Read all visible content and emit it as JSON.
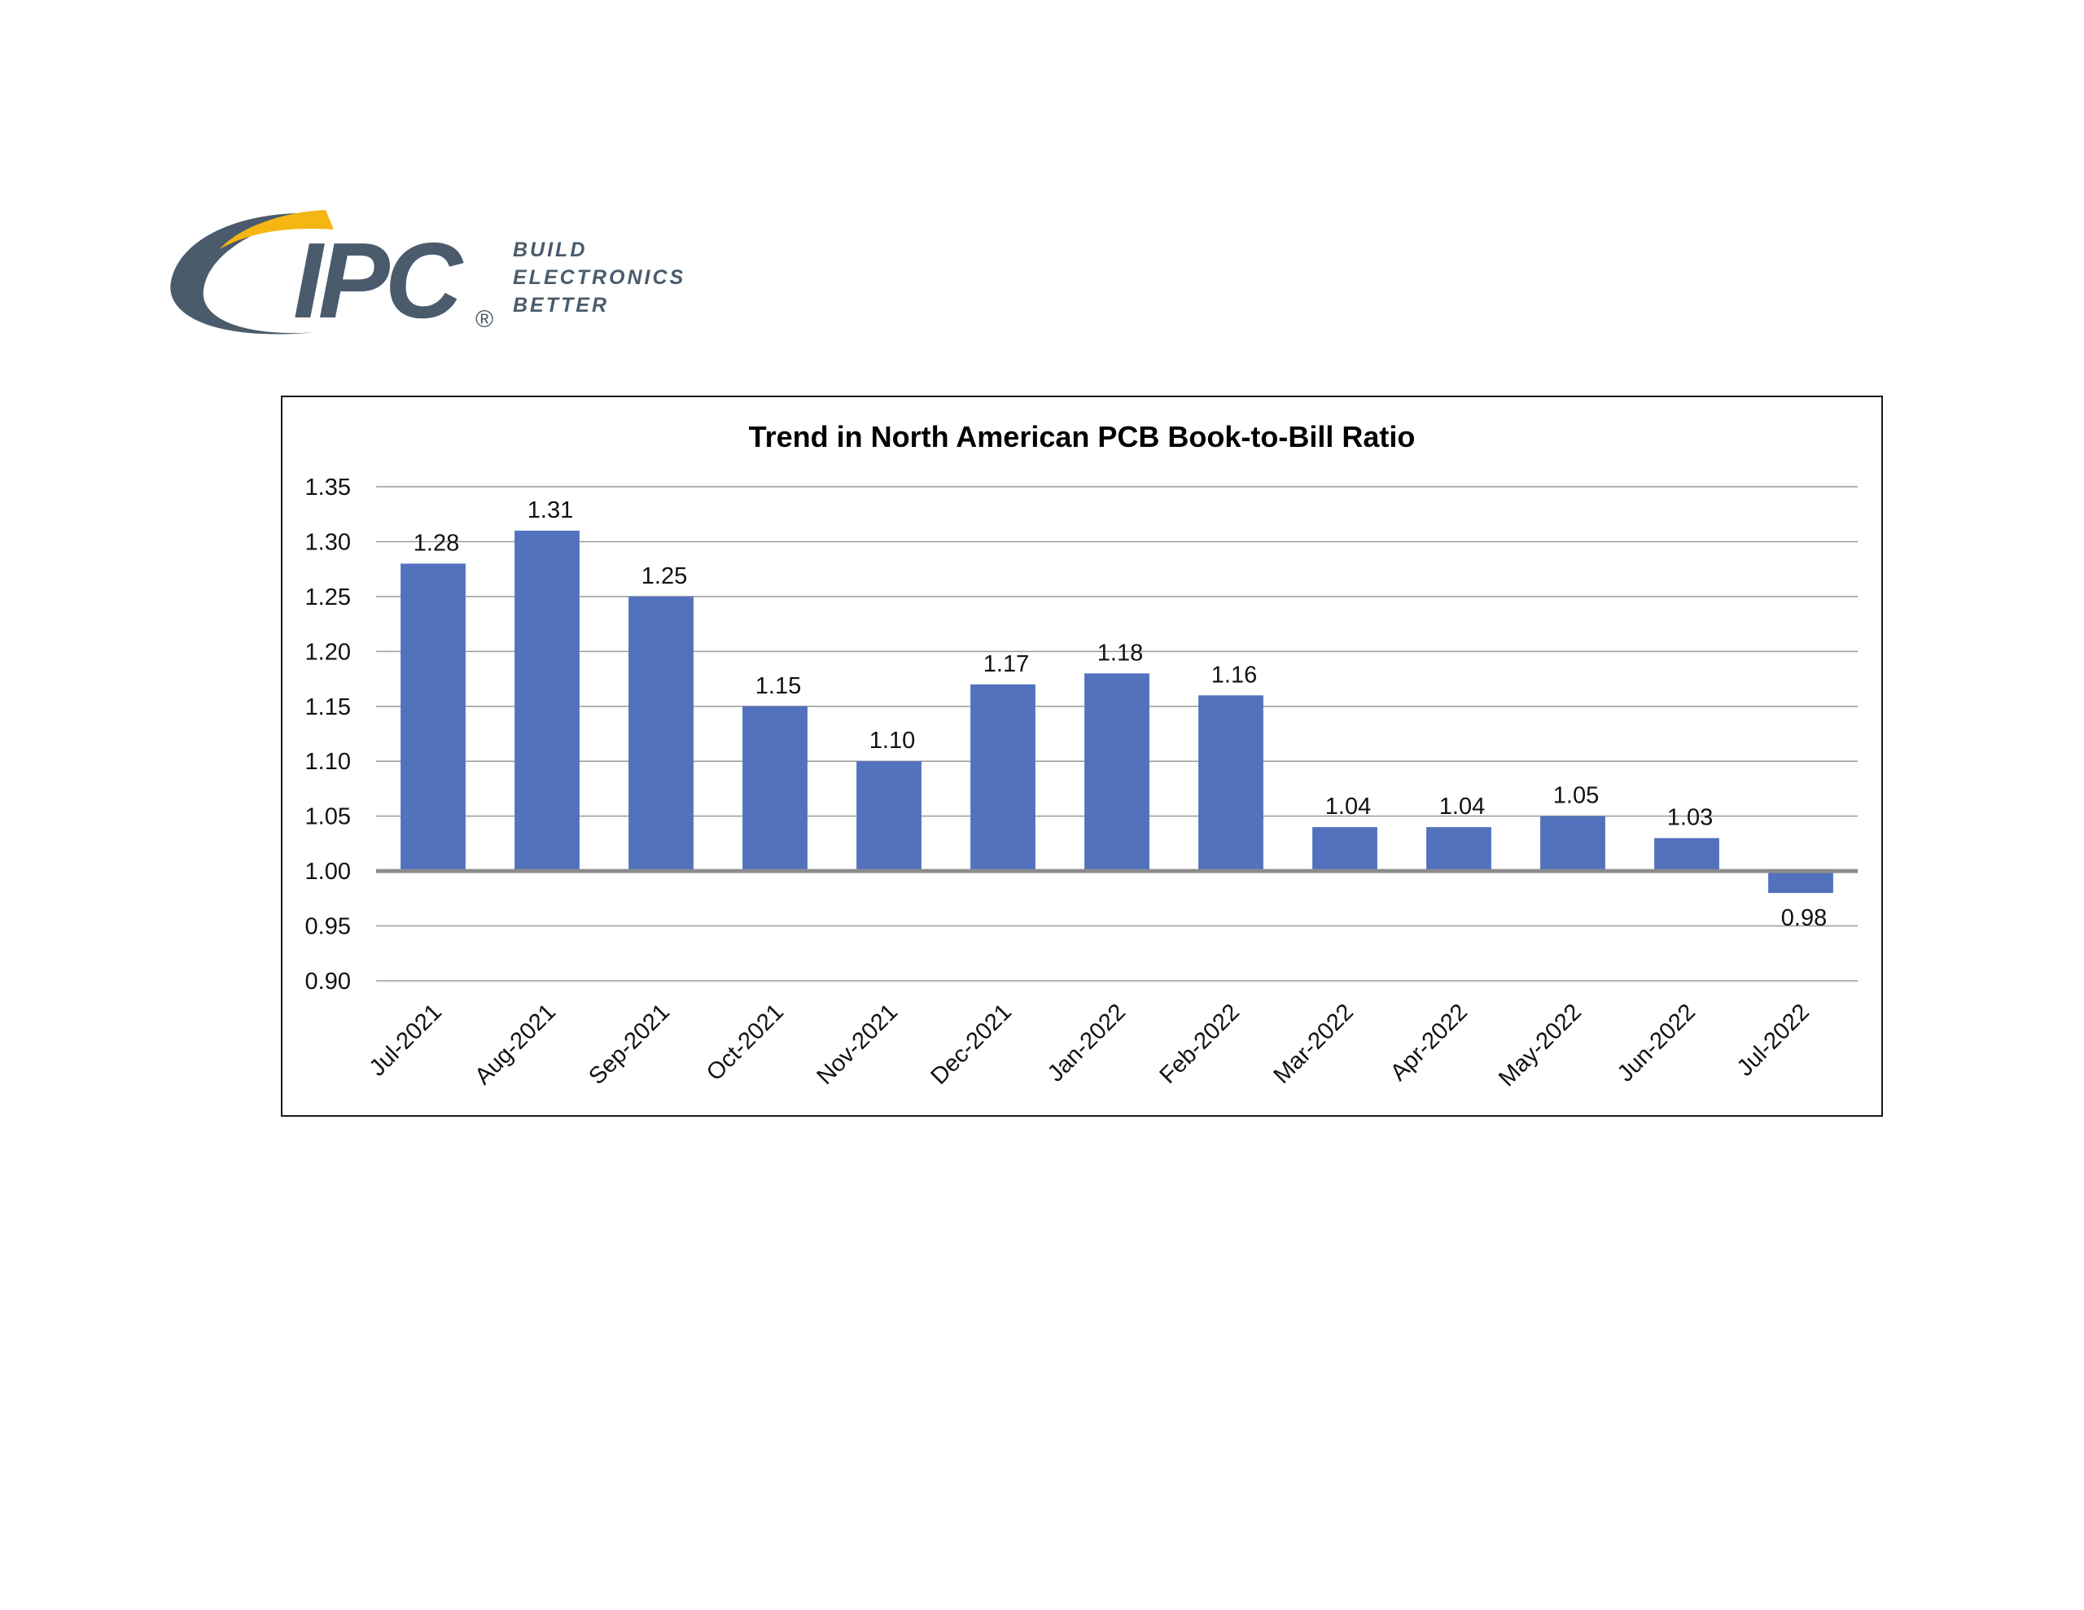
{
  "logo": {
    "wordmark": "IPC",
    "registered": "®",
    "tagline_lines": [
      "BUILD",
      "ELECTRONICS",
      "BETTER"
    ],
    "colors": {
      "slate": "#4a5b6c",
      "gold": "#f5b512",
      "tagline": "#4a5b6c"
    }
  },
  "colors": {
    "bar": "#5272be",
    "gridline": "#9a9a9a",
    "baseline": "#8c8c8c",
    "frame": "#1a1a1a"
  },
  "chart_data": {
    "type": "bar",
    "title": "Trend in North American PCB Book-to-Bill Ratio",
    "xlabel": "",
    "ylabel": "",
    "categories": [
      "Jul-2021",
      "Aug-2021",
      "Sep-2021",
      "Oct-2021",
      "Nov-2021",
      "Dec-2021",
      "Jan-2022",
      "Feb-2022",
      "Mar-2022",
      "Apr-2022",
      "May-2022",
      "Jun-2022",
      "Jul-2022"
    ],
    "values": [
      1.28,
      1.31,
      1.25,
      1.15,
      1.1,
      1.17,
      1.18,
      1.16,
      1.04,
      1.04,
      1.05,
      1.03,
      0.98
    ],
    "value_labels": [
      "1.28",
      "1.31",
      "1.25",
      "1.15",
      "1.10",
      "1.17",
      "1.18",
      "1.16",
      "1.04",
      "1.04",
      "1.05",
      "1.03",
      "0.98"
    ],
    "baseline": 1.0,
    "ylim": [
      0.9,
      1.35
    ],
    "yticks": [
      1.35,
      1.3,
      1.25,
      1.2,
      1.15,
      1.1,
      1.05,
      1.0,
      0.95,
      0.9
    ],
    "ytick_labels": [
      "1.35",
      "1.30",
      "1.25",
      "1.20",
      "1.15",
      "1.10",
      "1.05",
      "1.00",
      "0.95",
      "0.90"
    ],
    "grid": true,
    "legend": "none"
  }
}
